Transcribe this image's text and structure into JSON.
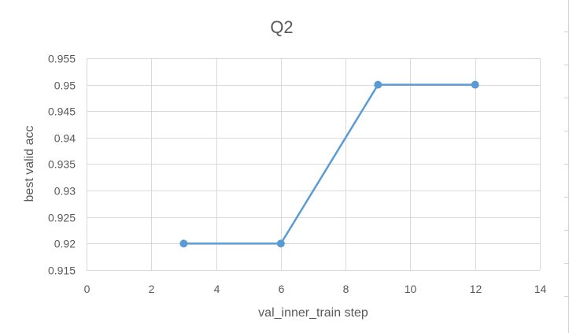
{
  "chart_data": {
    "type": "line",
    "title": "Q2",
    "xlabel": "val_inner_train step",
    "ylabel": "best valid acc",
    "xlim": [
      0,
      14
    ],
    "ylim": [
      0.915,
      0.955
    ],
    "x_ticks": [
      0,
      2,
      4,
      6,
      8,
      10,
      12,
      14
    ],
    "x_tick_labels": [
      "0",
      "2",
      "4",
      "6",
      "8",
      "10",
      "12",
      "14"
    ],
    "y_ticks": [
      0.915,
      0.92,
      0.925,
      0.93,
      0.935,
      0.94,
      0.945,
      0.95,
      0.955
    ],
    "y_tick_labels": [
      "0.915",
      "0.92",
      "0.925",
      "0.93",
      "0.935",
      "0.94",
      "0.945",
      "0.95",
      "0.955"
    ],
    "grid": true,
    "series": [
      {
        "x": [
          3,
          6,
          9,
          12
        ],
        "y": [
          0.92,
          0.92,
          0.95,
          0.95
        ],
        "color": "#5b9bd5"
      }
    ]
  }
}
